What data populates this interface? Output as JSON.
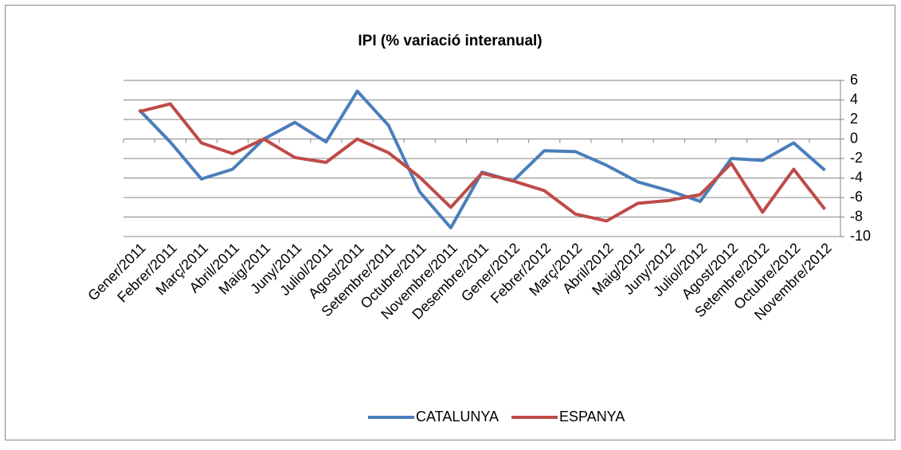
{
  "chart_data": {
    "type": "line",
    "title": "IPI (% variació interanual)",
    "categories": [
      "Gener/2011",
      "Febrer/2011",
      "Març/2011",
      "Abril/2011",
      "Maig/2011",
      "Juny/2011",
      "Juliol/2011",
      "Agost/2011",
      "Setembre/2011",
      "Octubre/2011",
      "Novembre/2011",
      "Desembre/2011",
      "Gener/2012",
      "Febrer/2012",
      "Març/2012",
      "Abril/2012",
      "Maig/2012",
      "Juny/2012",
      "Juliol/2012",
      "Agost/2012",
      "Setembre/2012",
      "Octubre/2012",
      "Novembre/2012"
    ],
    "series": [
      {
        "name": "CATALUNYA",
        "color": "#4a7ebb",
        "values": [
          3.0,
          -0.3,
          -4.1,
          -3.1,
          0,
          1.7,
          -0.3,
          4.9,
          1.4,
          -5.4,
          -9.1,
          -3.4,
          -4.3,
          -1.2,
          -1.3,
          -2.7,
          -4.4,
          -5.3,
          -6.4,
          -2.0,
          -2.2,
          -0.4,
          -3.2
        ]
      },
      {
        "name": "ESPANYA",
        "color": "#be4b48",
        "values": [
          2.8,
          3.6,
          -0.4,
          -1.5,
          0,
          -1.9,
          -2.4,
          0,
          -1.4,
          -3.9,
          -7.0,
          -3.5,
          -4.3,
          -5.3,
          -7.7,
          -8.4,
          -6.6,
          -6.3,
          -5.7,
          -2.5,
          -7.5,
          -3.1,
          -7.2
        ]
      }
    ],
    "ylim": [
      -10,
      6
    ],
    "yticks": [
      6,
      4,
      2,
      0,
      -2,
      -4,
      -6,
      -8,
      -10
    ],
    "grid": true,
    "legend": "bottom",
    "y_axis_side": "right"
  }
}
